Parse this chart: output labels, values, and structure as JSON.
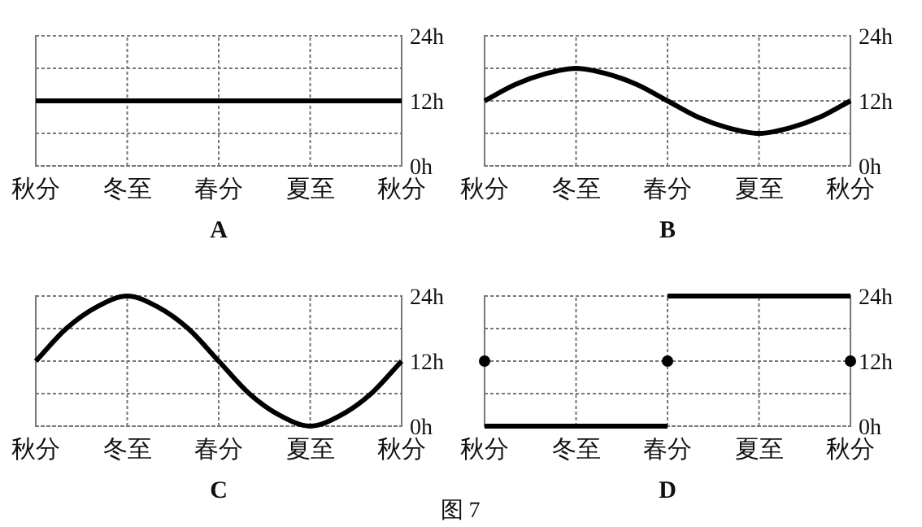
{
  "chart_data": [
    {
      "type": "line",
      "title": "A",
      "ylim": [
        0,
        24
      ],
      "grid": true,
      "categories": [
        "秋分",
        null,
        null,
        "冬至",
        null,
        null,
        "春分",
        null,
        null,
        "夏至",
        null,
        null,
        "秋分"
      ],
      "yticks": [
        {
          "value": 0,
          "label": "0h"
        },
        {
          "value": 6,
          "label": null
        },
        {
          "value": 12,
          "label": "12h"
        },
        {
          "value": 18,
          "label": null
        },
        {
          "value": 24,
          "label": "24h"
        }
      ],
      "series": [
        {
          "color": "#000000",
          "values": [
            12,
            12,
            12,
            12,
            12,
            12,
            12,
            12,
            12,
            12,
            12,
            12,
            12
          ]
        }
      ]
    },
    {
      "type": "line",
      "title": "B",
      "ylim": [
        0,
        24
      ],
      "grid": true,
      "categories": [
        "秋分",
        null,
        null,
        "冬至",
        null,
        null,
        "春分",
        null,
        null,
        "夏至",
        null,
        null,
        "秋分"
      ],
      "yticks": [
        {
          "value": 0,
          "label": "0h"
        },
        {
          "value": 6,
          "label": null
        },
        {
          "value": 12,
          "label": "12h"
        },
        {
          "value": 18,
          "label": null
        },
        {
          "value": 24,
          "label": "24h"
        }
      ],
      "series": [
        {
          "color": "#000000",
          "values": [
            12,
            15,
            17,
            18,
            17,
            15,
            12,
            9,
            7,
            6,
            7,
            9,
            12
          ]
        }
      ]
    },
    {
      "type": "line",
      "title": "C",
      "ylim": [
        0,
        24
      ],
      "grid": true,
      "categories": [
        "秋分",
        null,
        null,
        "冬至",
        null,
        null,
        "春分",
        null,
        null,
        "夏至",
        null,
        null,
        "秋分"
      ],
      "yticks": [
        {
          "value": 0,
          "label": "0h"
        },
        {
          "value": 6,
          "label": null
        },
        {
          "value": 12,
          "label": "12h"
        },
        {
          "value": 18,
          "label": null
        },
        {
          "value": 24,
          "label": "24h"
        }
      ],
      "series": [
        {
          "color": "#000000",
          "values": [
            12,
            18,
            22,
            24,
            22,
            18,
            12,
            6,
            2,
            0,
            2,
            6,
            12
          ]
        }
      ]
    },
    {
      "type": "line",
      "title": "D",
      "ylim": [
        0,
        24
      ],
      "grid": true,
      "annotations": [
        "图 7"
      ],
      "categories": [
        "秋分",
        null,
        null,
        "冬至",
        null,
        null,
        "春分",
        null,
        null,
        "夏至",
        null,
        null,
        "秋分"
      ],
      "yticks": [
        {
          "value": 0,
          "label": "0h"
        },
        {
          "value": 6,
          "label": null
        },
        {
          "value": 12,
          "label": "12h"
        },
        {
          "value": 18,
          "label": null
        },
        {
          "value": 24,
          "label": "24h"
        }
      ],
      "series": [
        {
          "color": "#000000",
          "values": [
            0,
            0,
            0,
            0,
            0,
            0,
            0,
            null,
            null,
            null,
            null,
            null,
            null
          ]
        },
        {
          "color": "#000000",
          "values": [
            null,
            null,
            null,
            null,
            null,
            null,
            24,
            24,
            24,
            24,
            24,
            24,
            24
          ]
        },
        {
          "type": "scatter",
          "marker": "circle",
          "color": "#000000",
          "values": [
            12,
            null,
            null,
            null,
            null,
            null,
            12,
            null,
            null,
            null,
            null,
            null,
            12
          ]
        }
      ]
    }
  ]
}
